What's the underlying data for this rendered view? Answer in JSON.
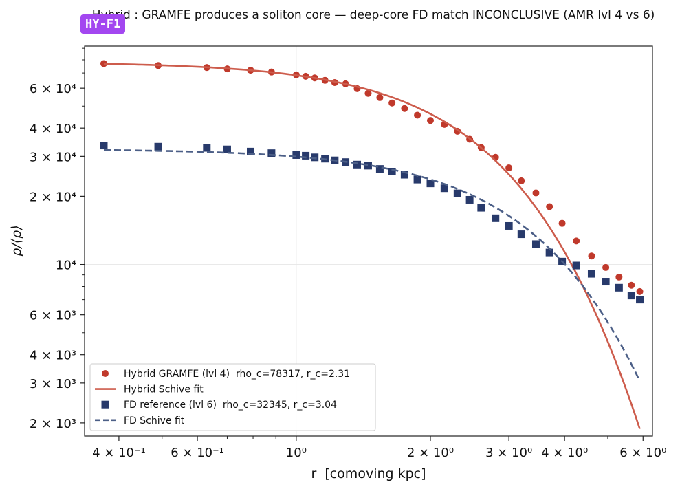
{
  "badge": "HY-F1",
  "chart_data": {
    "type": "scatter",
    "title": "Hybrid : GRAMFE produces a soliton core — deep-core FD match INCONCLUSIVE (AMR lvl 4 vs 6)",
    "xlabel": "r  [comoving kpc]",
    "ylabel": "ρ/⟨ρ⟩",
    "xscale": "log",
    "yscale": "log",
    "xlim": [
      0.335,
      6.3
    ],
    "ylim": [
      1750,
      92000
    ],
    "grid": true,
    "legend_position": "lower-left",
    "x_ticks": [
      {
        "value": 0.4,
        "label": "4 × 10⁻¹"
      },
      {
        "value": 0.6,
        "label": "6 × 10⁻¹"
      },
      {
        "value": 1,
        "label": "10⁰"
      },
      {
        "value": 2,
        "label": "2 × 10⁰"
      },
      {
        "value": 3,
        "label": "3 × 10⁰"
      },
      {
        "value": 4,
        "label": "4 × 10⁰"
      },
      {
        "value": 6,
        "label": "6 × 10⁰"
      }
    ],
    "y_ticks": [
      {
        "value": 2000,
        "label": "2 × 10³"
      },
      {
        "value": 3000,
        "label": "3 × 10³"
      },
      {
        "value": 4000,
        "label": "4 × 10³"
      },
      {
        "value": 6000,
        "label": "6 × 10³"
      },
      {
        "value": 10000,
        "label": "10⁴"
      },
      {
        "value": 20000,
        "label": "2 × 10⁴"
      },
      {
        "value": 30000,
        "label": "3 × 10⁴"
      },
      {
        "value": 40000,
        "label": "4 × 10⁴"
      },
      {
        "value": 60000,
        "label": "6 × 10⁴"
      }
    ],
    "series": [
      {
        "name": "Hybrid GRAMFE (lvl 4)  rho_c=78317, r_c=2.31",
        "kind": "scatter",
        "marker": "circle",
        "color": "#c0392b",
        "x": [
          0.37,
          0.49,
          0.63,
          0.7,
          0.79,
          0.88,
          1.0,
          1.05,
          1.1,
          1.16,
          1.22,
          1.29,
          1.37,
          1.45,
          1.54,
          1.64,
          1.75,
          1.87,
          2.0,
          2.15,
          2.3,
          2.45,
          2.6,
          2.8,
          3.0,
          3.2,
          3.45,
          3.7,
          3.95,
          4.25,
          4.6,
          4.95,
          5.3,
          5.65,
          5.9
        ],
        "y": [
          77000,
          75500,
          74000,
          73000,
          72000,
          70700,
          68700,
          67700,
          66600,
          65000,
          63500,
          62700,
          59700,
          56900,
          54500,
          51600,
          48800,
          45600,
          43200,
          41500,
          38700,
          35700,
          32800,
          29700,
          26700,
          23400,
          20700,
          18000,
          15200,
          12700,
          10900,
          9700,
          8800,
          8100,
          7600
        ]
      },
      {
        "name": "Hybrid Schive fit",
        "kind": "line",
        "color": "#cd5c4c",
        "dash": "solid",
        "function": "schive",
        "rho_c": 78317,
        "r_c": 2.31
      },
      {
        "name": "FD reference (lvl 6)  rho_c=32345, r_c=3.04",
        "kind": "scatter",
        "marker": "square",
        "color": "#283a6b",
        "x": [
          0.37,
          0.49,
          0.63,
          0.7,
          0.79,
          0.88,
          1.0,
          1.05,
          1.1,
          1.16,
          1.22,
          1.29,
          1.37,
          1.45,
          1.54,
          1.64,
          1.75,
          1.87,
          2.0,
          2.15,
          2.3,
          2.45,
          2.6,
          2.8,
          3.0,
          3.2,
          3.45,
          3.7,
          3.95,
          4.25,
          4.6,
          4.95,
          5.3,
          5.65,
          5.9
        ],
        "y": [
          33500,
          33100,
          32700,
          32200,
          31500,
          31000,
          30400,
          30200,
          29700,
          29300,
          28800,
          28300,
          27600,
          27300,
          26400,
          25700,
          24900,
          23700,
          22800,
          21700,
          20600,
          19300,
          17800,
          16000,
          14800,
          13600,
          12300,
          11300,
          10300,
          9900,
          9100,
          8400,
          7900,
          7300,
          7000
        ]
      },
      {
        "name": "FD Schive fit",
        "kind": "line",
        "color": "#4c5f87",
        "dash": "dashed",
        "function": "schive",
        "rho_c": 32345,
        "r_c": 3.04
      }
    ]
  }
}
